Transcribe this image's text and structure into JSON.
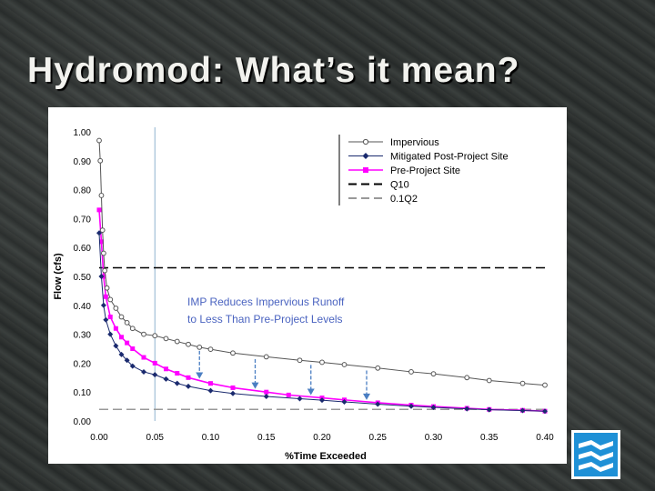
{
  "slide": {
    "title": "Hydromod: What’s it mean?"
  },
  "logo": {
    "name": "waves-logo-icon"
  },
  "chart_data": {
    "type": "line",
    "xlabel": "%Time Exceeded",
    "ylabel": "Flow (cfs)",
    "xlim": [
      0,
      0.4
    ],
    "ylim": [
      0,
      1
    ],
    "x_ticks": [
      "0.00",
      "0.05",
      "0.10",
      "0.15",
      "0.20",
      "0.25",
      "0.30",
      "0.35",
      "0.40"
    ],
    "y_ticks": [
      "0.00",
      "0.10",
      "0.20",
      "0.30",
      "0.40",
      "0.50",
      "0.60",
      "0.70",
      "0.80",
      "0.90",
      "1.00"
    ],
    "grid": false,
    "legend_position": "top-right",
    "annotation": [
      "IMP Reduces Impervious Runoff",
      "to Less Than Pre-Project Levels"
    ],
    "reference_vline_x": 0.05,
    "series": [
      {
        "name": "Impervious",
        "color": "#555555",
        "marker": "open-circle",
        "x": [
          0.0,
          0.001,
          0.002,
          0.003,
          0.004,
          0.005,
          0.007,
          0.01,
          0.015,
          0.02,
          0.025,
          0.03,
          0.04,
          0.05,
          0.06,
          0.07,
          0.08,
          0.09,
          0.1,
          0.12,
          0.15,
          0.18,
          0.2,
          0.22,
          0.25,
          0.28,
          0.3,
          0.33,
          0.35,
          0.38,
          0.4
        ],
        "y": [
          0.97,
          0.9,
          0.78,
          0.66,
          0.58,
          0.52,
          0.46,
          0.42,
          0.39,
          0.36,
          0.34,
          0.32,
          0.3,
          0.295,
          0.285,
          0.275,
          0.265,
          0.255,
          0.248,
          0.235,
          0.222,
          0.21,
          0.203,
          0.195,
          0.183,
          0.17,
          0.163,
          0.15,
          0.14,
          0.13,
          0.124
        ]
      },
      {
        "name": "Mitigated Post-Project Site",
        "color": "#1a2a6e",
        "marker": "filled-diamond",
        "x": [
          0.0,
          0.002,
          0.004,
          0.006,
          0.01,
          0.015,
          0.02,
          0.025,
          0.03,
          0.04,
          0.05,
          0.06,
          0.07,
          0.08,
          0.1,
          0.12,
          0.15,
          0.18,
          0.2,
          0.22,
          0.25,
          0.28,
          0.3,
          0.33,
          0.35,
          0.38,
          0.4
        ],
        "y": [
          0.65,
          0.5,
          0.4,
          0.35,
          0.3,
          0.26,
          0.23,
          0.21,
          0.19,
          0.17,
          0.16,
          0.145,
          0.13,
          0.12,
          0.105,
          0.095,
          0.085,
          0.077,
          0.072,
          0.066,
          0.058,
          0.051,
          0.047,
          0.042,
          0.039,
          0.036,
          0.034
        ]
      },
      {
        "name": "Pre-Project Site",
        "color": "#ff00ff",
        "marker": "filled-square",
        "x": [
          0.0,
          0.002,
          0.004,
          0.006,
          0.01,
          0.015,
          0.02,
          0.025,
          0.03,
          0.04,
          0.05,
          0.06,
          0.07,
          0.08,
          0.1,
          0.12,
          0.15,
          0.17,
          0.2,
          0.22,
          0.25,
          0.28,
          0.3,
          0.33,
          0.35,
          0.38,
          0.4
        ],
        "y": [
          0.73,
          0.62,
          0.5,
          0.43,
          0.36,
          0.32,
          0.29,
          0.27,
          0.25,
          0.22,
          0.2,
          0.18,
          0.165,
          0.15,
          0.13,
          0.115,
          0.1,
          0.09,
          0.08,
          0.073,
          0.063,
          0.055,
          0.05,
          0.044,
          0.04,
          0.037,
          0.034
        ]
      },
      {
        "name": "Q10",
        "color": "#000000",
        "style": "dashed",
        "y_constant": 0.53
      },
      {
        "name": "0.1Q2",
        "color": "#999999",
        "style": "dashed",
        "y_constant": 0.04
      }
    ],
    "gap_arrows_x": [
      0.09,
      0.14,
      0.19,
      0.24
    ]
  }
}
